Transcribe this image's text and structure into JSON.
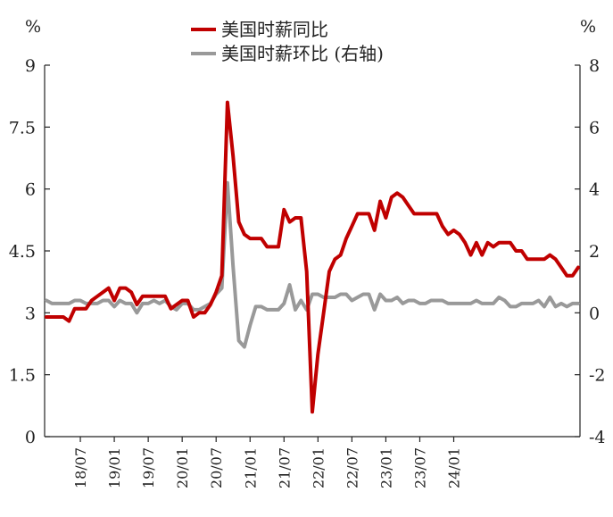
{
  "chart_data": {
    "type": "line",
    "left_axis": {
      "unit": "%",
      "ticks": [
        "0",
        "1.5",
        "3",
        "4.5",
        "6",
        "7.5",
        "9"
      ],
      "range": [
        0,
        9
      ]
    },
    "right_axis": {
      "unit": "%",
      "ticks": [
        "-4",
        "-2",
        "0",
        "2",
        "4",
        "6",
        "8"
      ],
      "range": [
        -4,
        8
      ]
    },
    "x_tick_labels": [
      "18/07",
      "19/01",
      "19/07",
      "20/01",
      "20/07",
      "21/01",
      "21/07",
      "22/01",
      "22/07",
      "23/01",
      "23/07",
      "24/01"
    ],
    "legend": {
      "placement": "top-center",
      "entries": [
        "美国时薪同比",
        "美国时薪环比 (右轴)"
      ]
    },
    "colors": {
      "yoy": "#c00000",
      "mom": "#999999"
    },
    "series": [
      {
        "name": "美国时薪同比",
        "axis": "left",
        "points": [
          [
            "2018-01",
            2.9
          ],
          [
            "2018-02",
            2.9
          ],
          [
            "2018-03",
            2.9
          ],
          [
            "2018-04",
            2.9
          ],
          [
            "2018-05",
            2.8
          ],
          [
            "2018-06",
            3.1
          ],
          [
            "2018-07",
            3.1
          ],
          [
            "2018-08",
            3.1
          ],
          [
            "2018-09",
            3.3
          ],
          [
            "2018-10",
            3.4
          ],
          [
            "2018-11",
            3.5
          ],
          [
            "2018-12",
            3.6
          ],
          [
            "2019-01",
            3.3
          ],
          [
            "2019-02",
            3.6
          ],
          [
            "2019-03",
            3.6
          ],
          [
            "2019-04",
            3.5
          ],
          [
            "2019-05",
            3.2
          ],
          [
            "2019-06",
            3.4
          ],
          [
            "2019-07",
            3.4
          ],
          [
            "2019-08",
            3.4
          ],
          [
            "2019-09",
            3.4
          ],
          [
            "2019-10",
            3.4
          ],
          [
            "2019-11",
            3.1
          ],
          [
            "2019-12",
            3.2
          ],
          [
            "2020-01",
            3.3
          ],
          [
            "2020-02",
            3.3
          ],
          [
            "2020-03",
            2.9
          ],
          [
            "2020-04",
            3.0
          ],
          [
            "2020-05",
            3.0
          ],
          [
            "2020-06",
            3.2
          ],
          [
            "2020-07",
            3.5
          ],
          [
            "2020-08",
            3.9
          ],
          [
            "2020-09",
            8.1
          ],
          [
            "2020-10",
            6.8
          ],
          [
            "2020-11",
            5.2
          ],
          [
            "2020-12",
            4.9
          ],
          [
            "2021-01",
            4.8
          ],
          [
            "2021-02",
            4.8
          ],
          [
            "2021-03",
            4.8
          ],
          [
            "2021-04",
            4.6
          ],
          [
            "2021-05",
            4.6
          ],
          [
            "2021-06",
            4.6
          ],
          [
            "2021-07",
            5.5
          ],
          [
            "2021-08",
            5.2
          ],
          [
            "2021-09",
            5.3
          ],
          [
            "2021-10",
            5.3
          ],
          [
            "2021-11",
            4.0
          ],
          [
            "2021-12",
            0.6
          ],
          [
            "2022-01",
            2.0
          ],
          [
            "2022-02",
            3.0
          ],
          [
            "2022-03",
            4.0
          ],
          [
            "2022-04",
            4.3
          ],
          [
            "2022-05",
            4.4
          ],
          [
            "2022-06",
            4.8
          ],
          [
            "2022-07",
            5.1
          ],
          [
            "2022-08",
            5.4
          ],
          [
            "2022-09",
            5.4
          ],
          [
            "2022-10",
            5.4
          ],
          [
            "2022-11",
            5.0
          ],
          [
            "2022-12",
            5.7
          ],
          [
            "2023-01",
            5.3
          ],
          [
            "2023-02",
            5.8
          ],
          [
            "2023-03",
            5.9
          ],
          [
            "2023-04",
            5.8
          ],
          [
            "2023-05",
            5.6
          ],
          [
            "2023-06",
            5.4
          ],
          [
            "2023-07",
            5.4
          ],
          [
            "2023-08",
            5.4
          ],
          [
            "2023-09",
            5.4
          ],
          [
            "2023-10",
            5.4
          ],
          [
            "2023-11",
            5.1
          ],
          [
            "2023-12",
            4.9
          ],
          [
            "2024-01",
            5.0
          ],
          [
            "2024-02",
            4.9
          ],
          [
            "2024-03",
            4.7
          ],
          [
            "2024-04",
            4.4
          ],
          [
            "2024-05",
            4.7
          ],
          [
            "2024-06",
            4.4
          ],
          [
            "2024-07",
            4.7
          ],
          [
            "2024-08",
            4.6
          ],
          [
            "2024-09",
            4.7
          ],
          [
            "2024-10",
            4.7
          ],
          [
            "2024-11",
            4.7
          ],
          [
            "2024-12",
            4.5
          ],
          [
            "2025-01",
            4.5
          ],
          [
            "2025-02",
            4.3
          ],
          [
            "2025-03",
            4.3
          ],
          [
            "2025-04",
            4.3
          ],
          [
            "2025-05",
            4.3
          ],
          [
            "2025-06",
            4.4
          ],
          [
            "2025-07",
            4.3
          ],
          [
            "2025-08",
            4.1
          ],
          [
            "2025-09",
            3.9
          ],
          [
            "2025-10",
            3.9
          ],
          [
            "2025-11",
            4.1
          ]
        ]
      },
      {
        "name": "美国时薪环比 (右轴)",
        "axis": "right",
        "points": [
          [
            "2018-01",
            0.4
          ],
          [
            "2018-02",
            0.3
          ],
          [
            "2018-03",
            0.3
          ],
          [
            "2018-04",
            0.3
          ],
          [
            "2018-05",
            0.3
          ],
          [
            "2018-06",
            0.4
          ],
          [
            "2018-07",
            0.4
          ],
          [
            "2018-08",
            0.3
          ],
          [
            "2018-09",
            0.3
          ],
          [
            "2018-10",
            0.3
          ],
          [
            "2018-11",
            0.4
          ],
          [
            "2018-12",
            0.4
          ],
          [
            "2019-01",
            0.2
          ],
          [
            "2019-02",
            0.4
          ],
          [
            "2019-03",
            0.3
          ],
          [
            "2019-04",
            0.3
          ],
          [
            "2019-05",
            0.0
          ],
          [
            "2019-06",
            0.3
          ],
          [
            "2019-07",
            0.3
          ],
          [
            "2019-08",
            0.4
          ],
          [
            "2019-09",
            0.3
          ],
          [
            "2019-10",
            0.4
          ],
          [
            "2019-11",
            0.2
          ],
          [
            "2019-12",
            0.1
          ],
          [
            "2020-01",
            0.3
          ],
          [
            "2020-02",
            0.3
          ],
          [
            "2020-03",
            0.1
          ],
          [
            "2020-04",
            0.1
          ],
          [
            "2020-05",
            0.2
          ],
          [
            "2020-06",
            0.3
          ],
          [
            "2020-07",
            0.6
          ],
          [
            "2020-08",
            0.8
          ],
          [
            "2020-09",
            4.2
          ],
          [
            "2020-10",
            1.5
          ],
          [
            "2020-11",
            -0.9
          ],
          [
            "2020-12",
            -1.1
          ],
          [
            "2021-01",
            -0.4
          ],
          [
            "2021-02",
            0.2
          ],
          [
            "2021-03",
            0.2
          ],
          [
            "2021-04",
            0.1
          ],
          [
            "2021-05",
            0.1
          ],
          [
            "2021-06",
            0.1
          ],
          [
            "2021-07",
            0.3
          ],
          [
            "2021-08",
            0.9
          ],
          [
            "2021-09",
            0.1
          ],
          [
            "2021-10",
            0.4
          ],
          [
            "2021-11",
            0.1
          ],
          [
            "2021-12",
            0.6
          ],
          [
            "2022-01",
            0.6
          ],
          [
            "2022-02",
            0.5
          ],
          [
            "2022-03",
            0.5
          ],
          [
            "2022-04",
            0.5
          ],
          [
            "2022-05",
            0.6
          ],
          [
            "2022-06",
            0.6
          ],
          [
            "2022-07",
            0.4
          ],
          [
            "2022-08",
            0.5
          ],
          [
            "2022-09",
            0.6
          ],
          [
            "2022-10",
            0.6
          ],
          [
            "2022-11",
            0.1
          ],
          [
            "2022-12",
            0.6
          ],
          [
            "2023-01",
            0.4
          ],
          [
            "2023-02",
            0.4
          ],
          [
            "2023-03",
            0.5
          ],
          [
            "2023-04",
            0.3
          ],
          [
            "2023-05",
            0.4
          ],
          [
            "2023-06",
            0.4
          ],
          [
            "2023-07",
            0.3
          ],
          [
            "2023-08",
            0.3
          ],
          [
            "2023-09",
            0.4
          ],
          [
            "2023-10",
            0.4
          ],
          [
            "2023-11",
            0.4
          ],
          [
            "2023-12",
            0.3
          ],
          [
            "2024-01",
            0.3
          ],
          [
            "2024-02",
            0.3
          ],
          [
            "2024-03",
            0.3
          ],
          [
            "2024-04",
            0.3
          ],
          [
            "2024-05",
            0.4
          ],
          [
            "2024-06",
            0.3
          ],
          [
            "2024-07",
            0.3
          ],
          [
            "2024-08",
            0.3
          ],
          [
            "2024-09",
            0.5
          ],
          [
            "2024-10",
            0.4
          ],
          [
            "2024-11",
            0.2
          ],
          [
            "2024-12",
            0.2
          ],
          [
            "2025-01",
            0.3
          ],
          [
            "2025-02",
            0.3
          ],
          [
            "2025-03",
            0.3
          ],
          [
            "2025-04",
            0.4
          ],
          [
            "2025-05",
            0.2
          ],
          [
            "2025-06",
            0.5
          ],
          [
            "2025-07",
            0.2
          ],
          [
            "2025-08",
            0.3
          ],
          [
            "2025-09",
            0.2
          ],
          [
            "2025-10",
            0.3
          ],
          [
            "2025-11",
            0.3
          ]
        ]
      }
    ]
  }
}
